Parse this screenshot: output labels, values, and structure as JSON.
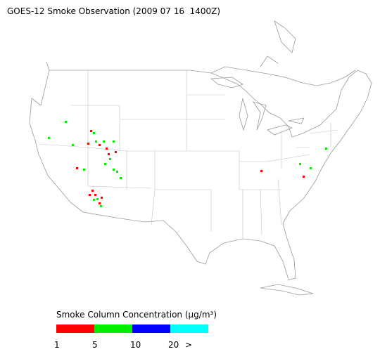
{
  "title": "GOES-12 Smoke Observation (2009 07 16  1400Z)",
  "legend": {
    "title": "Smoke Column Concentration (μg/m³)",
    "colors": [
      "#ff0000",
      "#00ee00",
      "#0000ff",
      "#00ffff"
    ],
    "labels": [
      "1",
      "5",
      "10",
      "20",
      ">"
    ]
  }
}
